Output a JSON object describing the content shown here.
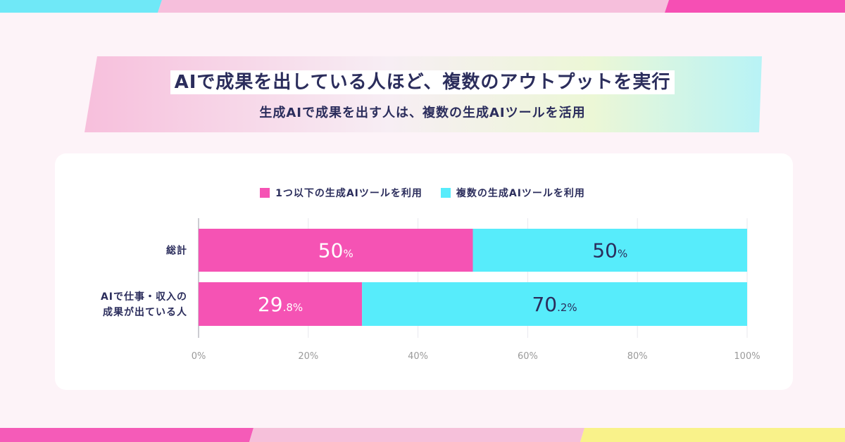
{
  "title": "AIで成果を出している人ほど、複数のアウトプットを実行",
  "subtitle": "生成AIで成果を出す人は、複数の生成AIツールを活用",
  "colors": {
    "pink": "#f553b4",
    "cyan": "#57ecfb",
    "navy": "#2b2d5c"
  },
  "chart_data": {
    "type": "bar",
    "orientation": "horizontal",
    "stacked": true,
    "categories": [
      [
        "総計"
      ],
      [
        "AIで仕事・収入の",
        "成果が出ている人"
      ]
    ],
    "series": [
      {
        "name": "1つ以下の生成AIツールを利用",
        "color": "#f553b4",
        "values": [
          50,
          29.8
        ],
        "labels": [
          [
            "50",
            "%"
          ],
          [
            "29",
            ".8%"
          ]
        ]
      },
      {
        "name": "複数の生成AIツールを利用",
        "color": "#57ecfb",
        "values": [
          50,
          70.2
        ],
        "labels": [
          [
            "50",
            "%"
          ],
          [
            "70",
            ".2%"
          ]
        ]
      }
    ],
    "xlim": [
      0,
      100
    ],
    "xticks": [
      "0%",
      "20%",
      "40%",
      "60%",
      "80%",
      "100%"
    ],
    "grid": true,
    "legend": "top-center"
  }
}
